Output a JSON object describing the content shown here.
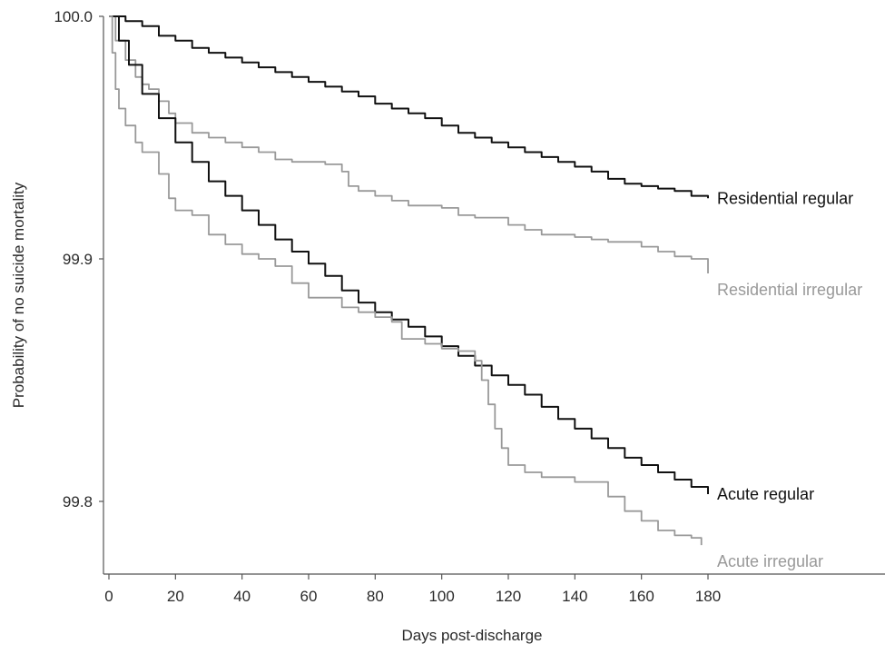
{
  "chart_data": {
    "type": "line",
    "title": "",
    "xlabel": "Days post-discharge",
    "ylabel": "Probability of no suicide mortality",
    "xlim": [
      0,
      180
    ],
    "ylim": [
      99.77,
      100.0
    ],
    "xticks": [
      0,
      20,
      40,
      60,
      80,
      100,
      120,
      140,
      160,
      180
    ],
    "yticks": [
      99.8,
      99.9,
      100.0
    ],
    "ytick_labels": [
      "99.8",
      "99.9",
      "100.0"
    ],
    "grid": false,
    "legend": "direct labels at line ends",
    "series": [
      {
        "name": "Residential regular",
        "color": "#111111",
        "x": [
          0,
          5,
          10,
          15,
          20,
          25,
          30,
          35,
          40,
          45,
          50,
          55,
          60,
          65,
          70,
          75,
          80,
          85,
          90,
          95,
          100,
          105,
          110,
          115,
          120,
          125,
          130,
          135,
          140,
          145,
          150,
          155,
          160,
          165,
          170,
          175,
          180
        ],
        "y": [
          100.0,
          99.998,
          99.996,
          99.992,
          99.99,
          99.987,
          99.985,
          99.983,
          99.981,
          99.979,
          99.977,
          99.975,
          99.973,
          99.971,
          99.969,
          99.967,
          99.964,
          99.962,
          99.96,
          99.958,
          99.955,
          99.952,
          99.95,
          99.948,
          99.946,
          99.944,
          99.942,
          99.94,
          99.938,
          99.936,
          99.933,
          99.931,
          99.93,
          99.929,
          99.928,
          99.926,
          99.925
        ]
      },
      {
        "name": "Residential irregular",
        "color": "#999999",
        "x": [
          0,
          2,
          5,
          8,
          10,
          12,
          15,
          18,
          20,
          25,
          30,
          35,
          40,
          45,
          50,
          55,
          60,
          65,
          70,
          72,
          75,
          80,
          85,
          90,
          100,
          105,
          110,
          120,
          125,
          130,
          140,
          145,
          150,
          160,
          165,
          170,
          175,
          180
        ],
        "y": [
          100.0,
          99.99,
          99.982,
          99.975,
          99.972,
          99.97,
          99.965,
          99.96,
          99.956,
          99.952,
          99.95,
          99.948,
          99.946,
          99.944,
          99.941,
          99.94,
          99.94,
          99.939,
          99.936,
          99.93,
          99.928,
          99.926,
          99.924,
          99.922,
          99.921,
          99.918,
          99.917,
          99.914,
          99.912,
          99.91,
          99.909,
          99.908,
          99.907,
          99.905,
          99.903,
          99.901,
          99.9,
          99.894
        ]
      },
      {
        "name": "Acute regular",
        "color": "#111111",
        "x": [
          0,
          3,
          6,
          10,
          15,
          20,
          25,
          30,
          35,
          40,
          45,
          50,
          55,
          60,
          65,
          70,
          75,
          80,
          85,
          90,
          95,
          100,
          105,
          110,
          115,
          120,
          125,
          130,
          135,
          140,
          145,
          150,
          155,
          160,
          165,
          170,
          175,
          180
        ],
        "y": [
          100.0,
          99.99,
          99.98,
          99.968,
          99.958,
          99.948,
          99.94,
          99.932,
          99.926,
          99.92,
          99.914,
          99.908,
          99.903,
          99.898,
          99.893,
          99.887,
          99.882,
          99.878,
          99.875,
          99.872,
          99.868,
          99.864,
          99.86,
          99.856,
          99.852,
          99.848,
          99.844,
          99.839,
          99.834,
          99.83,
          99.826,
          99.822,
          99.818,
          99.815,
          99.812,
          99.809,
          99.806,
          99.803
        ]
      },
      {
        "name": "Acute irregular",
        "color": "#999999",
        "x": [
          0,
          1,
          2,
          3,
          5,
          8,
          10,
          15,
          18,
          20,
          25,
          30,
          35,
          40,
          45,
          50,
          55,
          60,
          70,
          75,
          80,
          85,
          88,
          95,
          100,
          105,
          110,
          112,
          114,
          116,
          118,
          120,
          125,
          130,
          140,
          150,
          155,
          160,
          165,
          170,
          175,
          178
        ],
        "y": [
          100.0,
          99.985,
          99.97,
          99.962,
          99.955,
          99.948,
          99.944,
          99.935,
          99.925,
          99.92,
          99.918,
          99.91,
          99.906,
          99.902,
          99.9,
          99.897,
          99.89,
          99.884,
          99.88,
          99.878,
          99.876,
          99.874,
          99.867,
          99.865,
          99.863,
          99.862,
          99.858,
          99.85,
          99.84,
          99.83,
          99.822,
          99.815,
          99.812,
          99.81,
          99.808,
          99.802,
          99.796,
          99.792,
          99.788,
          99.786,
          99.785,
          99.782
        ]
      }
    ]
  }
}
